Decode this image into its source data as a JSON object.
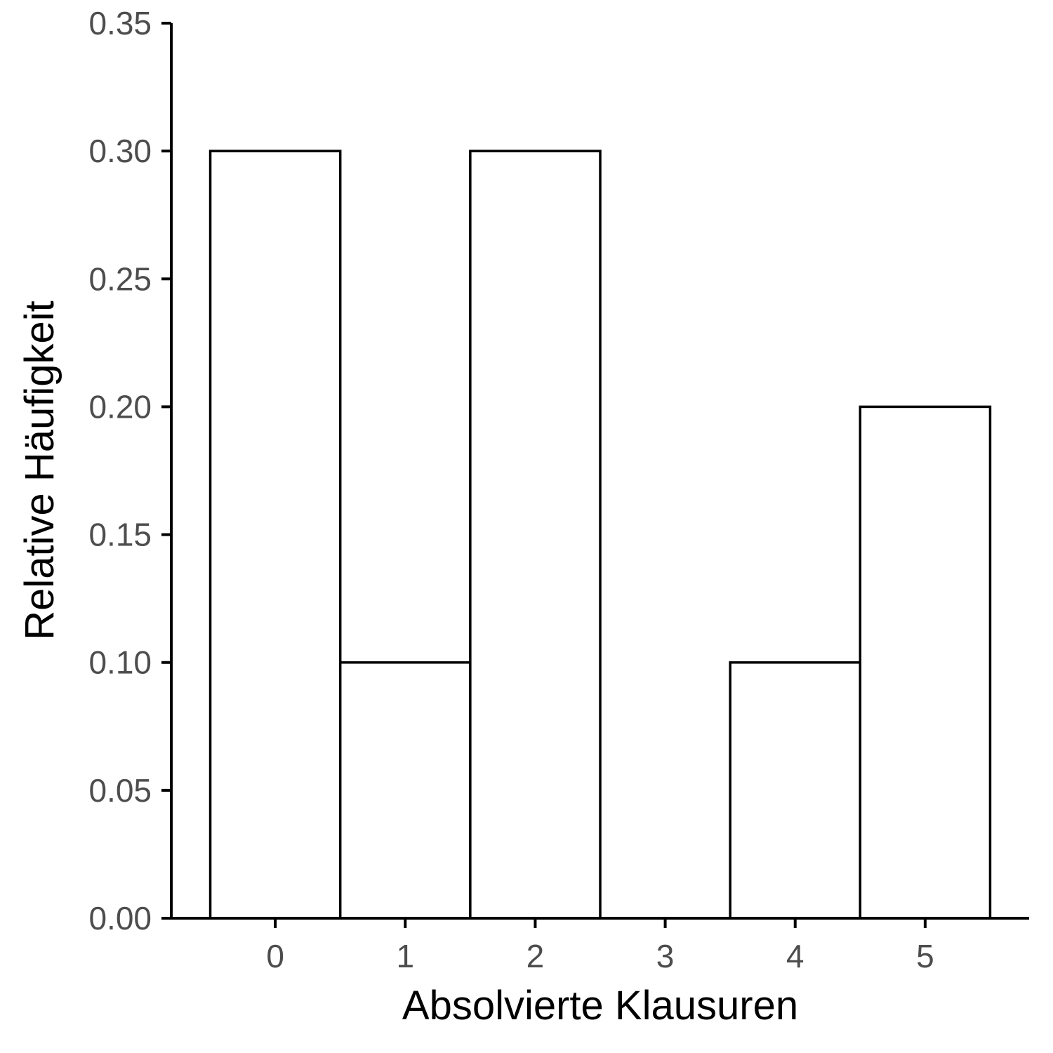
{
  "chart_data": {
    "type": "bar",
    "categories": [
      "0",
      "1",
      "2",
      "3",
      "4",
      "5"
    ],
    "values": [
      0.3,
      0.1,
      0.3,
      0.0,
      0.1,
      0.2
    ],
    "xlabel": "Absolvierte Klausuren",
    "ylabel": "Relative Häufigkeit",
    "ylim": [
      0,
      0.35
    ],
    "yticks": [
      "0.00",
      "0.05",
      "0.10",
      "0.15",
      "0.20",
      "0.25",
      "0.30",
      "0.35"
    ],
    "xlim": [
      -0.8,
      5.8
    ],
    "grid": false,
    "bar_fill": "#ffffff",
    "bar_stroke": "#000000"
  }
}
